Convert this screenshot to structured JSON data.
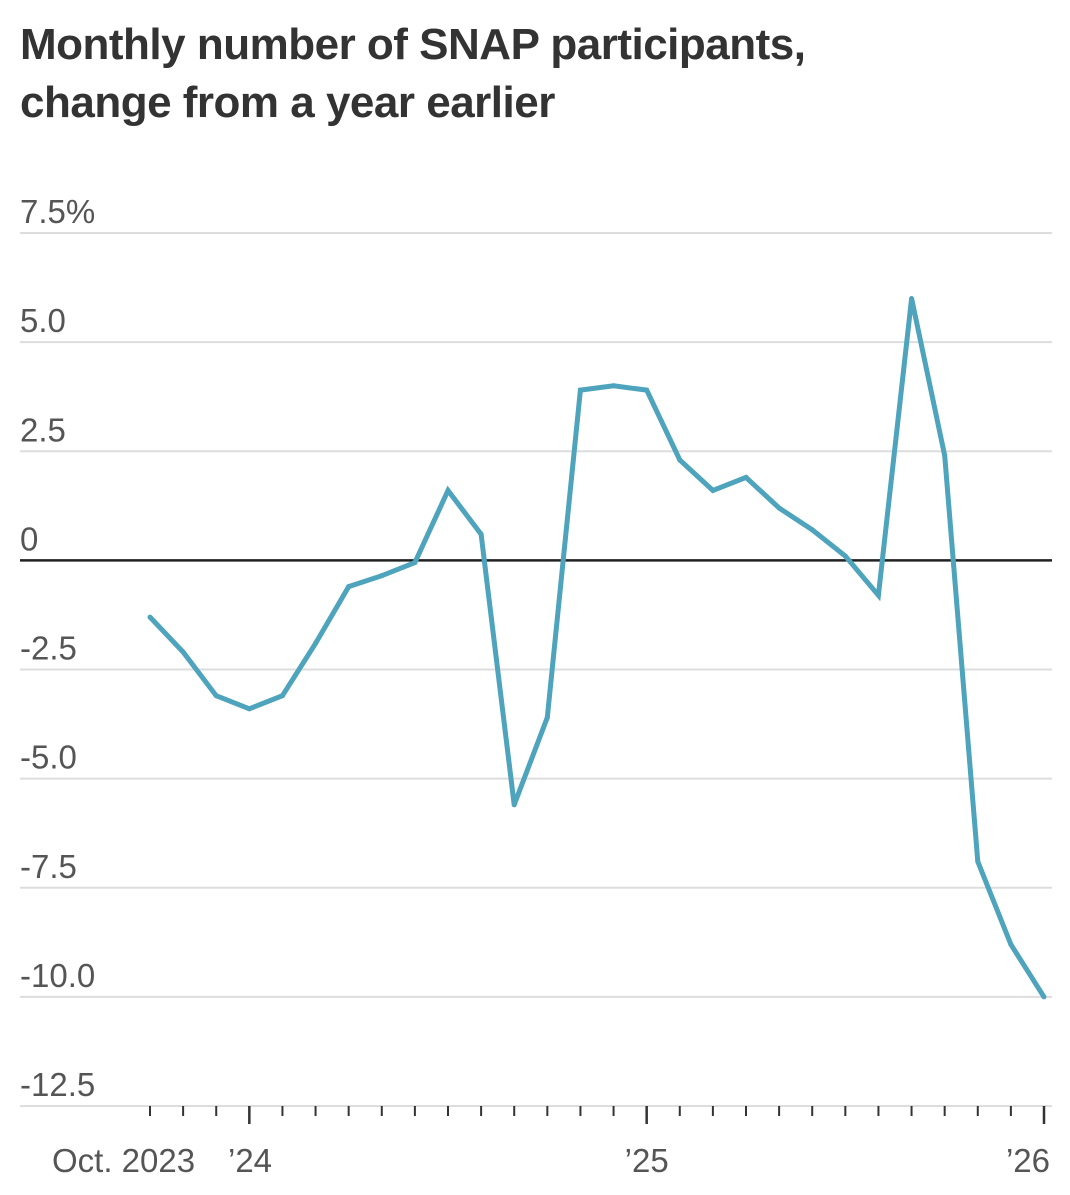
{
  "title_lines": [
    "Monthly number of SNAP participants,",
    "change from a year earlier"
  ],
  "colors": {
    "line": "#4ea3bd",
    "grid": "#dddddd",
    "zero": "#222222",
    "axis": "#333333",
    "text": "#555555"
  },
  "chart_data": {
    "type": "line",
    "title": "Monthly number of SNAP participants, change from a year earlier",
    "xlabel": "",
    "ylabel": "",
    "ylim": [
      -12.5,
      7.5
    ],
    "y_ticks": [
      {
        "value": 7.5,
        "label": "7.5%"
      },
      {
        "value": 5.0,
        "label": "5.0"
      },
      {
        "value": 2.5,
        "label": "2.5"
      },
      {
        "value": 0,
        "label": "0"
      },
      {
        "value": -2.5,
        "label": "-2.5"
      },
      {
        "value": -5.0,
        "label": "-5.0"
      },
      {
        "value": -7.5,
        "label": "-7.5"
      },
      {
        "value": -10.0,
        "label": "-10.0"
      },
      {
        "value": -12.5,
        "label": "-12.5"
      }
    ],
    "grid": true,
    "x_ticks": [
      {
        "label": "Oct. 2023",
        "date": "2023-10"
      },
      {
        "label": "’24",
        "date": "2024-01"
      },
      {
        "label": "’25",
        "date": "2025-01"
      },
      {
        "label": "’26",
        "date": "2026-01"
      }
    ],
    "x": [
      "2023-10",
      "2023-11",
      "2023-12",
      "2024-01",
      "2024-02",
      "2024-03",
      "2024-04",
      "2024-05",
      "2024-06",
      "2024-07",
      "2024-08",
      "2024-09",
      "2024-10",
      "2024-11",
      "2024-12",
      "2025-01",
      "2025-02",
      "2025-03",
      "2025-04",
      "2025-05",
      "2025-06",
      "2025-07",
      "2025-08",
      "2025-09",
      "2025-10",
      "2025-11",
      "2025-12",
      "2026-01"
    ],
    "series": [
      {
        "values": [
          -1.3,
          -2.1,
          -3.1,
          -3.4,
          -3.1,
          -1.9,
          -0.6,
          -0.35,
          -0.05,
          1.6,
          0.6,
          -5.6,
          -3.6,
          3.9,
          4.0,
          3.9,
          2.3,
          1.6,
          1.9,
          1.2,
          0.7,
          0.1,
          -0.8,
          6.0,
          2.4,
          -6.9,
          -8.8,
          -10.0
        ]
      }
    ]
  }
}
